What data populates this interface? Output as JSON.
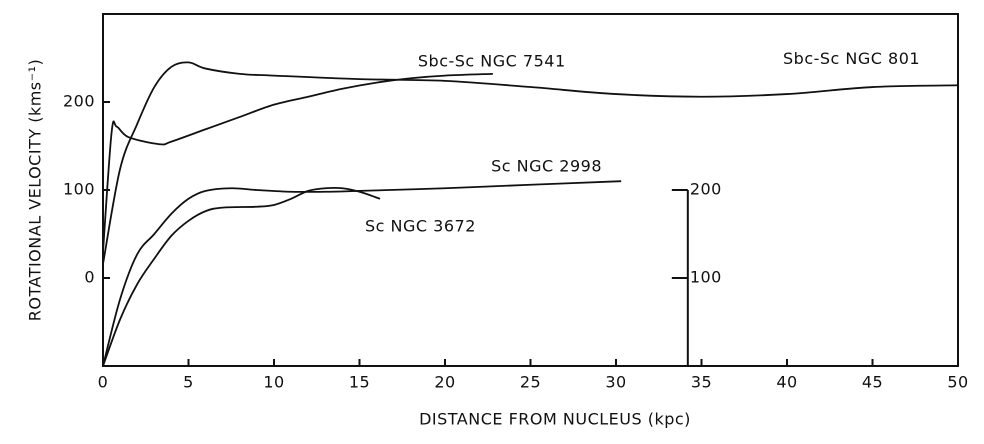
{
  "chart_data": {
    "type": "line",
    "xlabel": "DISTANCE FROM NUCLEUS   (kpc)",
    "ylabel": "ROTATIONAL VELOCITY (kms⁻¹)",
    "xlim": [
      0,
      50
    ],
    "xticks": [
      0,
      5,
      10,
      15,
      20,
      25,
      30,
      35,
      40,
      45,
      50
    ],
    "ylim": [
      -100,
      300
    ],
    "yticks": [
      0,
      100,
      200
    ],
    "y2lim": [
      0,
      400
    ],
    "y2ticks": [
      100,
      200
    ],
    "series": [
      {
        "name": "Sbc-Sc NGC 7541",
        "color": "#111111",
        "x": [
          0,
          0.5,
          0.8,
          1.5,
          3.3,
          4,
          6,
          8,
          10,
          12,
          14,
          16,
          18,
          20,
          22.8
        ],
        "values": [
          30,
          165,
          172,
          160,
          152,
          155,
          169,
          183,
          197,
          206,
          215,
          222,
          227,
          230,
          232
        ]
      },
      {
        "name": "Sbc-Sc NGC 801",
        "color": "#111111",
        "x": [
          0,
          1,
          2,
          3,
          4,
          5,
          6,
          8,
          10,
          15,
          20,
          25,
          30,
          35,
          40,
          45,
          50
        ],
        "values": [
          16,
          124,
          175,
          217,
          240,
          245,
          238,
          232,
          230,
          226,
          224,
          217,
          209,
          206,
          209,
          217,
          219
        ]
      },
      {
        "name": "Sc NGC 2998",
        "color": "#111111",
        "x": [
          0,
          1,
          2,
          3,
          4,
          5,
          6,
          7.5,
          9,
          11,
          13,
          15,
          20,
          25,
          30.3
        ],
        "values": [
          -100,
          -24,
          27,
          50,
          73,
          90,
          99,
          102,
          100,
          98,
          98,
          99,
          102,
          106,
          110
        ]
      },
      {
        "name": "Sc NGC 3672",
        "color": "#111111",
        "x": [
          0,
          1,
          2,
          3,
          4,
          5,
          6,
          7,
          9,
          10,
          11,
          12,
          13,
          14,
          15,
          16.2
        ],
        "values": [
          -100,
          -47,
          -7,
          22,
          48,
          65,
          76,
          80,
          81,
          83,
          90,
          99,
          102,
          102,
          98,
          90
        ]
      }
    ]
  }
}
